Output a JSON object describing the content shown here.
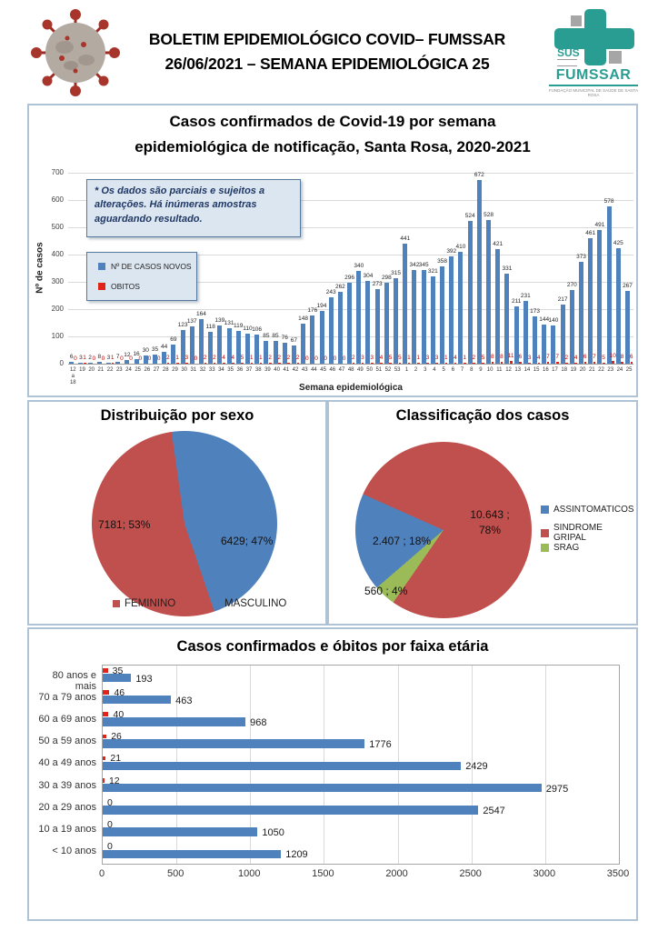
{
  "header": {
    "title_line1": "BOLETIM EPIDEMIOLÓGICO COVID– FUMSSAR",
    "title_line2": "26/06/2021 – SEMANA EPIDEMIOLÓGICA 25",
    "logo": {
      "sus": "SUS",
      "name": "FUMSSAR",
      "subtitle": "FUNDAÇÃO MUNICIPAL DE SAÚDE DE SANTA ROSA"
    }
  },
  "colors": {
    "cases_blue": "#4f81bd",
    "deaths_red": "#e02418",
    "deaths_label_red": "#c00000",
    "pie_red": "#c0504d",
    "pie_green": "#9bbb59",
    "panel_border": "#aec4d6",
    "logo_teal": "#2a9d93"
  },
  "chart_data": [
    {
      "id": "weekly",
      "type": "bar",
      "title": "Casos confirmados de Covid-19 por semana epidemiológica de notificação, Santa Rosa, 2020-2021",
      "title_lines": [
        "Casos confirmados de Covid-19 por semana",
        "epidemiológica de notificação, Santa Rosa, 2020-2021"
      ],
      "note": "* Os dados são parciais e sujeitos a alterações. Há inúmeras amostras aguardando resultado.",
      "xlabel": "Semana epidemiológica",
      "ylabel": "Nº de casos",
      "ylim": [
        0,
        700
      ],
      "yticks": [
        0,
        100,
        200,
        300,
        400,
        500,
        600,
        700
      ],
      "grid": true,
      "legend_position": "inside-left",
      "legend": [
        {
          "label": "Nº DE CASOS NOVOS",
          "color": "#4f81bd"
        },
        {
          "label": "OBITOS",
          "color": "#e02418"
        }
      ],
      "categories": [
        "12 a 18",
        "19",
        "20",
        "21",
        "22",
        "23",
        "24",
        "25",
        "26",
        "27",
        "28",
        "29",
        "30",
        "31",
        "32",
        "33",
        "34",
        "35",
        "36",
        "37",
        "38",
        "39",
        "40",
        "41",
        "42",
        "43",
        "44",
        "45",
        "46",
        "47",
        "48",
        "49",
        "50",
        "51",
        "52",
        "53",
        "1",
        "2",
        "3",
        "4",
        "5",
        "6",
        "7",
        "8",
        "9",
        "10",
        "11",
        "12",
        "13",
        "14",
        "15",
        "16",
        "17",
        "18",
        "19",
        "20",
        "21",
        "22",
        "23",
        "24",
        "25"
      ],
      "series": [
        {
          "name": "Nº DE CASOS NOVOS",
          "color": "#4f81bd",
          "values": [
            6,
            3,
            2,
            8,
            3,
            7,
            12,
            16,
            30,
            35,
            44,
            69,
            123,
            137,
            164,
            118,
            139,
            131,
            119,
            110,
            106,
            85,
            85,
            76,
            67,
            148,
            176,
            194,
            243,
            262,
            296,
            340,
            304,
            273,
            298,
            315,
            441,
            342,
            345,
            321,
            358,
            392,
            410,
            524,
            672,
            528,
            421,
            331,
            211,
            231,
            173,
            144,
            140,
            217,
            270,
            373,
            461,
            491,
            578,
            425,
            267
          ]
        },
        {
          "name": "OBITOS",
          "color": "#e02418",
          "values": [
            0,
            1,
            0,
            0,
            1,
            0,
            0,
            0,
            0,
            0,
            2,
            1,
            3,
            0,
            2,
            2,
            4,
            4,
            5,
            1,
            1,
            2,
            2,
            2,
            2,
            0,
            0,
            0,
            0,
            0,
            2,
            3,
            3,
            4,
            5,
            5,
            1,
            1,
            3,
            3,
            1,
            4,
            1,
            2,
            5,
            8,
            8,
            11,
            6,
            3,
            4,
            7,
            7,
            2,
            4,
            6,
            7,
            5,
            10,
            8,
            6
          ]
        }
      ]
    },
    {
      "id": "sex_pie",
      "type": "pie",
      "title": "Distribuição por sexo",
      "slices": [
        {
          "label": "FEMININO",
          "value": 7181,
          "pct": "53%",
          "color": "#c0504d"
        },
        {
          "label": "MASCULINO",
          "value": 6429,
          "pct": "47%",
          "color": "#4f81bd"
        }
      ],
      "data_labels": {
        "feminino": "7181; 53%",
        "masculino": "6429; 47%"
      },
      "legend_position": "bottom"
    },
    {
      "id": "class_pie",
      "type": "pie",
      "title": "Classificação dos casos",
      "slices": [
        {
          "label": "ASSINTOMATICOS",
          "value": "2.407",
          "pct": "18%",
          "color": "#4f81bd"
        },
        {
          "label": "SINDROME GRIPAL",
          "value": "10.643",
          "pct": "78%",
          "color": "#c0504d"
        },
        {
          "label": "SRAG",
          "value": "560",
          "pct": "4%",
          "color": "#9bbb59"
        }
      ],
      "data_labels": {
        "sindrome_l1": "10.643 ;",
        "sindrome_l2": "78%",
        "assintomaticos": "2.407 ; 18%",
        "srag": "560 ; 4%"
      },
      "legend_position": "right"
    },
    {
      "id": "age_groups",
      "type": "bar-horizontal",
      "title": "Casos confirmados e óbitos  por faixa etária",
      "xlim": [
        0,
        3500
      ],
      "xticks": [
        0,
        500,
        1000,
        1500,
        2000,
        2500,
        3000,
        3500
      ],
      "grid": true,
      "categories": [
        "80 anos e mais",
        "70 a 79 anos",
        "60 a 69 anos",
        "50 a 59 anos",
        "40 a 49 anos",
        "30 a 39 anos",
        "20 a 29 anos",
        "10 a 19 anos",
        "< 10 anos"
      ],
      "series": [
        {
          "name": "óbitos",
          "color": "#e02418",
          "values": [
            35,
            46,
            40,
            26,
            21,
            12,
            0,
            0,
            0
          ]
        },
        {
          "name": "casos confirmados",
          "color": "#4f81bd",
          "values": [
            193,
            463,
            968,
            1776,
            2429,
            2975,
            2547,
            1050,
            1209
          ]
        }
      ]
    }
  ]
}
